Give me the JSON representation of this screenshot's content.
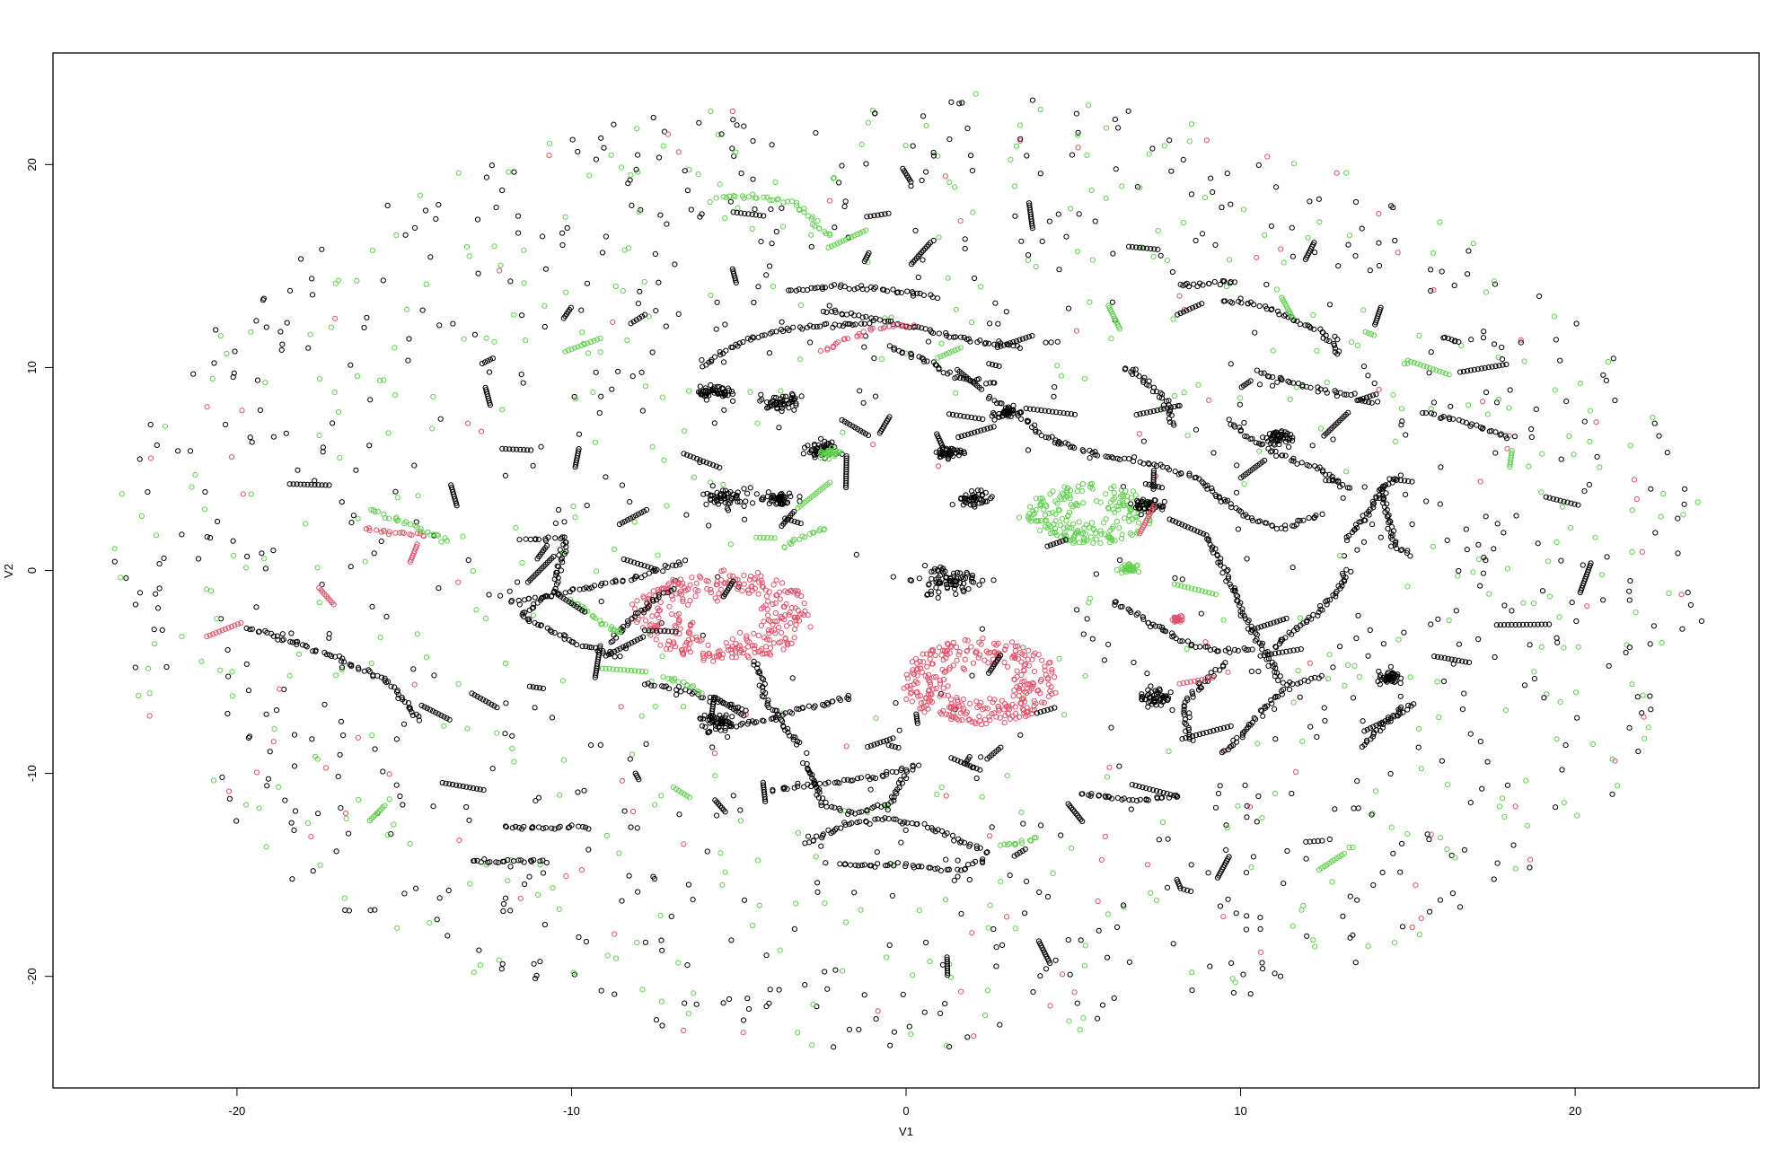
{
  "chart_data": {
    "type": "scatter",
    "title": "",
    "xlabel": "V1",
    "ylabel": "V2",
    "xlim": [
      -25.5,
      25.5
    ],
    "ylim": [
      -25.5,
      25.5
    ],
    "x_ticks": [
      -20,
      -10,
      0,
      10,
      20
    ],
    "y_ticks": [
      -20,
      -10,
      0,
      10,
      20
    ],
    "x_tick_labels": [
      "-20",
      "-10",
      "0",
      "10",
      "20"
    ],
    "y_tick_labels": [
      "-20",
      "-10",
      "0",
      "10",
      "20"
    ],
    "grid": false,
    "marker": "open-circle",
    "colors": {
      "black": "#000000",
      "red": "#DF536B",
      "green": "#61D04F"
    },
    "background": {
      "description_points": "scattered points filling ellipse |x|<=24, |y|<=24",
      "black_share": 0.55,
      "green_share": 0.38,
      "red_share": 0.07
    },
    "red_clusters": [
      {
        "x": -5.5,
        "y": -2.2,
        "rx": 2.6,
        "ry": 2.2
      },
      {
        "x": 2.2,
        "y": -5.5,
        "rx": 2.3,
        "ry": 2.1
      }
    ],
    "green_clusters": [
      {
        "x": 5.5,
        "y": 2.8,
        "rx": 1.9,
        "ry": 1.5
      }
    ],
    "curves": [
      {
        "color": "black",
        "points": [
          [
            -11.5,
            1.5
          ],
          [
            -10.2,
            1.6
          ],
          [
            -10.5,
            -1
          ],
          [
            -11.5,
            -2.2
          ],
          [
            -10,
            -3.5
          ],
          [
            -8.5,
            -4.3
          ]
        ]
      },
      {
        "color": "black",
        "points": [
          [
            -11.8,
            -1.5
          ],
          [
            -10,
            -1
          ],
          [
            -8,
            -0.3
          ],
          [
            -6.5,
            0.5
          ]
        ]
      },
      {
        "color": "black",
        "points": [
          [
            -19.7,
            -2.8
          ],
          [
            -18.3,
            -3.5
          ],
          [
            -17,
            -4.3
          ],
          [
            -15.5,
            -5.5
          ],
          [
            -14.5,
            -7.5
          ]
        ]
      },
      {
        "color": "black",
        "points": [
          [
            -6,
            -8
          ],
          [
            -4.5,
            -7.5
          ],
          [
            -3,
            -6.8
          ],
          [
            -1.5,
            -6.2
          ]
        ]
      },
      {
        "color": "black",
        "points": [
          [
            -3,
            -9.5
          ],
          [
            -2.5,
            -11.5
          ],
          [
            -1.5,
            -12
          ],
          [
            -0.5,
            -11.5
          ],
          [
            0,
            -10
          ]
        ]
      },
      {
        "color": "black",
        "points": [
          [
            -4,
            -10.8
          ],
          [
            -2.5,
            -10.5
          ],
          [
            -1,
            -10.2
          ],
          [
            0.5,
            -9.5
          ]
        ]
      },
      {
        "color": "black",
        "points": [
          [
            -3,
            -13.5
          ],
          [
            -1.8,
            -12.5
          ],
          [
            -0.5,
            -12.2
          ],
          [
            1,
            -12.8
          ],
          [
            2.5,
            -14
          ]
        ]
      },
      {
        "color": "black",
        "points": [
          [
            -2,
            -14.5
          ],
          [
            0,
            -14.5
          ],
          [
            1.5,
            -14.8
          ],
          [
            2.5,
            -14.2
          ]
        ]
      },
      {
        "color": "black",
        "points": [
          [
            -6,
            10
          ],
          [
            -5.5,
            10.8
          ],
          [
            -4.5,
            11.5
          ],
          [
            -3,
            12
          ],
          [
            -1,
            12.2
          ]
        ]
      },
      {
        "color": "black",
        "points": [
          [
            -3.5,
            13.8
          ],
          [
            -2,
            14
          ],
          [
            -0.5,
            13.8
          ],
          [
            1,
            13.5
          ]
        ]
      },
      {
        "color": "black",
        "points": [
          [
            -2.5,
            12.8
          ],
          [
            -1,
            12.4
          ],
          [
            0.5,
            11.9
          ],
          [
            2,
            11.3
          ],
          [
            3.5,
            11
          ]
        ]
      },
      {
        "color": "black",
        "points": [
          [
            -0.5,
            11
          ],
          [
            0.8,
            10.2
          ],
          [
            1.5,
            9.5
          ],
          [
            2.8,
            9.2
          ]
        ]
      },
      {
        "color": "black",
        "points": [
          [
            2.5,
            8.5
          ],
          [
            3.3,
            7.8
          ],
          [
            4,
            6.8
          ],
          [
            4.8,
            6.2
          ]
        ]
      },
      {
        "color": "black",
        "points": [
          [
            4.5,
            6.3
          ],
          [
            6,
            5.6
          ],
          [
            7.5,
            5.2
          ],
          [
            8.8,
            4.5
          ],
          [
            9.5,
            3.3
          ]
        ]
      },
      {
        "color": "black",
        "points": [
          [
            6.5,
            10
          ],
          [
            7.2,
            9.3
          ],
          [
            7.8,
            8.3
          ],
          [
            8,
            7.1
          ]
        ]
      },
      {
        "color": "black",
        "points": [
          [
            10.5,
            9.8
          ],
          [
            11.2,
            9.4
          ],
          [
            12.3,
            8.9
          ],
          [
            13.5,
            8.6
          ]
        ]
      },
      {
        "color": "black",
        "points": [
          [
            9.7,
            7.4
          ],
          [
            10.2,
            6.6
          ],
          [
            11,
            5.8
          ],
          [
            12.4,
            4.9
          ],
          [
            13.3,
            3.9
          ]
        ]
      },
      {
        "color": "black",
        "points": [
          [
            9.5,
            3.5
          ],
          [
            10.2,
            2.6
          ],
          [
            11.3,
            2.1
          ],
          [
            12.5,
            2.8
          ]
        ]
      },
      {
        "color": "black",
        "points": [
          [
            13.2,
            1.5
          ],
          [
            13.8,
            2.8
          ],
          [
            14.2,
            4
          ],
          [
            14.8,
            4.7
          ]
        ]
      },
      {
        "color": "black",
        "points": [
          [
            9,
            1.6
          ],
          [
            9.7,
            -0.6
          ],
          [
            10.2,
            -2.6
          ],
          [
            10.9,
            -4.4
          ],
          [
            11.2,
            -5.6
          ]
        ]
      },
      {
        "color": "black",
        "points": [
          [
            6.2,
            -1.5
          ],
          [
            7.4,
            -2.7
          ],
          [
            8.3,
            -3.5
          ],
          [
            9.3,
            -4
          ],
          [
            10.5,
            -3.8
          ]
        ]
      },
      {
        "color": "black",
        "points": [
          [
            11,
            -3.8
          ],
          [
            12,
            -2.5
          ],
          [
            12.8,
            -1.2
          ],
          [
            13.3,
            0.1
          ]
        ]
      },
      {
        "color": "black",
        "points": [
          [
            9.5,
            -9
          ],
          [
            10.2,
            -7.8
          ],
          [
            10.8,
            -6.6
          ],
          [
            11.5,
            -5.6
          ],
          [
            12.5,
            -5.2
          ]
        ]
      },
      {
        "color": "black",
        "points": [
          [
            8.5,
            -8.4
          ],
          [
            8.3,
            -6.7
          ],
          [
            8.8,
            -5.6
          ],
          [
            9.6,
            -4.5
          ]
        ]
      },
      {
        "color": "black",
        "points": [
          [
            15.5,
            7.8
          ],
          [
            16.4,
            7.4
          ],
          [
            17.6,
            6.8
          ],
          [
            18.2,
            6.5
          ]
        ]
      },
      {
        "color": "black",
        "points": [
          [
            14.2,
            4.2
          ],
          [
            14.4,
            2.6
          ],
          [
            14.6,
            1.2
          ],
          [
            15.2,
            0.7
          ]
        ]
      },
      {
        "color": "black",
        "points": [
          [
            9.5,
            13.3
          ],
          [
            10.6,
            13.1
          ],
          [
            11.5,
            12.4
          ],
          [
            12.4,
            11.8
          ],
          [
            13,
            10.6
          ]
        ]
      },
      {
        "color": "black",
        "points": [
          [
            8.2,
            14.1
          ],
          [
            8.8,
            14.1
          ],
          [
            9.4,
            14.2
          ],
          [
            9.9,
            14.2
          ]
        ]
      },
      {
        "color": "black",
        "points": [
          [
            13.6,
            -8.7
          ],
          [
            14.1,
            -7.9
          ],
          [
            14.7,
            -7
          ],
          [
            15.2,
            -6.4
          ]
        ]
      },
      {
        "color": "black",
        "points": [
          [
            5.2,
            -11
          ],
          [
            6.2,
            -11.2
          ],
          [
            7.2,
            -11.3
          ],
          [
            8.2,
            -11.1
          ]
        ]
      },
      {
        "color": "black",
        "points": [
          [
            -12,
            -12.6
          ],
          [
            -11.4,
            -12.7
          ],
          [
            -10.5,
            -12.7
          ],
          [
            -9.4,
            -12.6
          ]
        ]
      },
      {
        "color": "black",
        "points": [
          [
            -13,
            -14.3
          ],
          [
            -12.4,
            -14.3
          ],
          [
            -11.6,
            -14.3
          ],
          [
            -10.6,
            -14.3
          ]
        ]
      },
      {
        "color": "black",
        "points": [
          [
            -4.5,
            -4.5
          ],
          [
            -4.2,
            -6.3
          ],
          [
            -3.8,
            -7.3
          ],
          [
            -3.2,
            -8.7
          ]
        ]
      },
      {
        "color": "black",
        "points": [
          [
            -7.8,
            -5.6
          ],
          [
            -6.7,
            -5.9
          ],
          [
            -5.7,
            -6.4
          ],
          [
            -4.7,
            -6.9
          ]
        ]
      },
      {
        "color": "black",
        "points": [
          [
            -7,
            -0.9
          ],
          [
            -7.8,
            -1.8
          ],
          [
            -8.3,
            -2.6
          ],
          [
            -8.9,
            -3.6
          ]
        ]
      },
      {
        "color": "red",
        "points": [
          [
            -2.5,
            10.8
          ],
          [
            -1.8,
            11.4
          ],
          [
            -1,
            11.9
          ],
          [
            -0.3,
            12.1
          ],
          [
            0.3,
            12.1
          ]
        ]
      },
      {
        "color": "red",
        "points": [
          [
            -16.2,
            2
          ],
          [
            -15.5,
            1.9
          ],
          [
            -14.8,
            1.8
          ],
          [
            -14.2,
            1.7
          ]
        ]
      },
      {
        "color": "green",
        "points": [
          [
            -5.6,
            18.4
          ],
          [
            -4.4,
            18.4
          ],
          [
            -3.3,
            18.1
          ],
          [
            -2.7,
            17.1
          ],
          [
            -2.2,
            16.4
          ]
        ]
      },
      {
        "color": "green",
        "points": [
          [
            -16,
            3
          ],
          [
            -15.2,
            2.5
          ],
          [
            -14.3,
            1.9
          ],
          [
            -13.6,
            1.4
          ]
        ]
      },
      {
        "color": "green",
        "points": [
          [
            -10,
            -1.4
          ],
          [
            -9.4,
            -2.2
          ],
          [
            -8.8,
            -2.9
          ],
          [
            -8.6,
            -3
          ]
        ]
      },
      {
        "color": "green",
        "points": [
          [
            -3.7,
            1.1
          ],
          [
            -3,
            1.7
          ],
          [
            -2.3,
            2.2
          ]
        ]
      },
      {
        "color": "green",
        "points": [
          [
            -7.2,
            -5.2
          ],
          [
            -6.6,
            -5.6
          ],
          [
            -6,
            -6.1
          ]
        ]
      },
      {
        "color": "green",
        "points": [
          [
            2.8,
            -13.5
          ],
          [
            3.4,
            -13.4
          ],
          [
            4,
            -13.1
          ]
        ]
      }
    ],
    "blobs": [
      {
        "color": "black",
        "x": -5.7,
        "y": 8.8,
        "r": 0.6
      },
      {
        "color": "black",
        "x": -3.7,
        "y": 8.3,
        "r": 0.55
      },
      {
        "color": "black",
        "x": -5.4,
        "y": 3.6,
        "r": 0.7
      },
      {
        "color": "black",
        "x": -3.8,
        "y": 3.5,
        "r": 0.5
      },
      {
        "color": "black",
        "x": -2.5,
        "y": 6,
        "r": 0.6
      },
      {
        "color": "black",
        "x": 1.3,
        "y": 5.8,
        "r": 0.45
      },
      {
        "color": "black",
        "x": 2,
        "y": 3.5,
        "r": 0.5
      },
      {
        "color": "black",
        "x": 1.3,
        "y": -0.5,
        "r": 1.1
      },
      {
        "color": "black",
        "x": 7.2,
        "y": 3.2,
        "r": 0.45
      },
      {
        "color": "black",
        "x": 7.4,
        "y": -6.3,
        "r": 0.55
      },
      {
        "color": "black",
        "x": 14.5,
        "y": -5.3,
        "r": 0.45
      },
      {
        "color": "black",
        "x": -5.6,
        "y": -7.4,
        "r": 0.5
      },
      {
        "color": "black",
        "x": 11.2,
        "y": 6.5,
        "r": 0.5
      },
      {
        "color": "black",
        "x": 3,
        "y": 7.8,
        "r": 0.4
      },
      {
        "color": "green",
        "x": -2.3,
        "y": 5.8,
        "r": 0.3
      },
      {
        "color": "green",
        "x": 6.7,
        "y": 0.1,
        "r": 0.3
      },
      {
        "color": "red",
        "x": 8.1,
        "y": -2.4,
        "r": 0.2
      }
    ]
  }
}
